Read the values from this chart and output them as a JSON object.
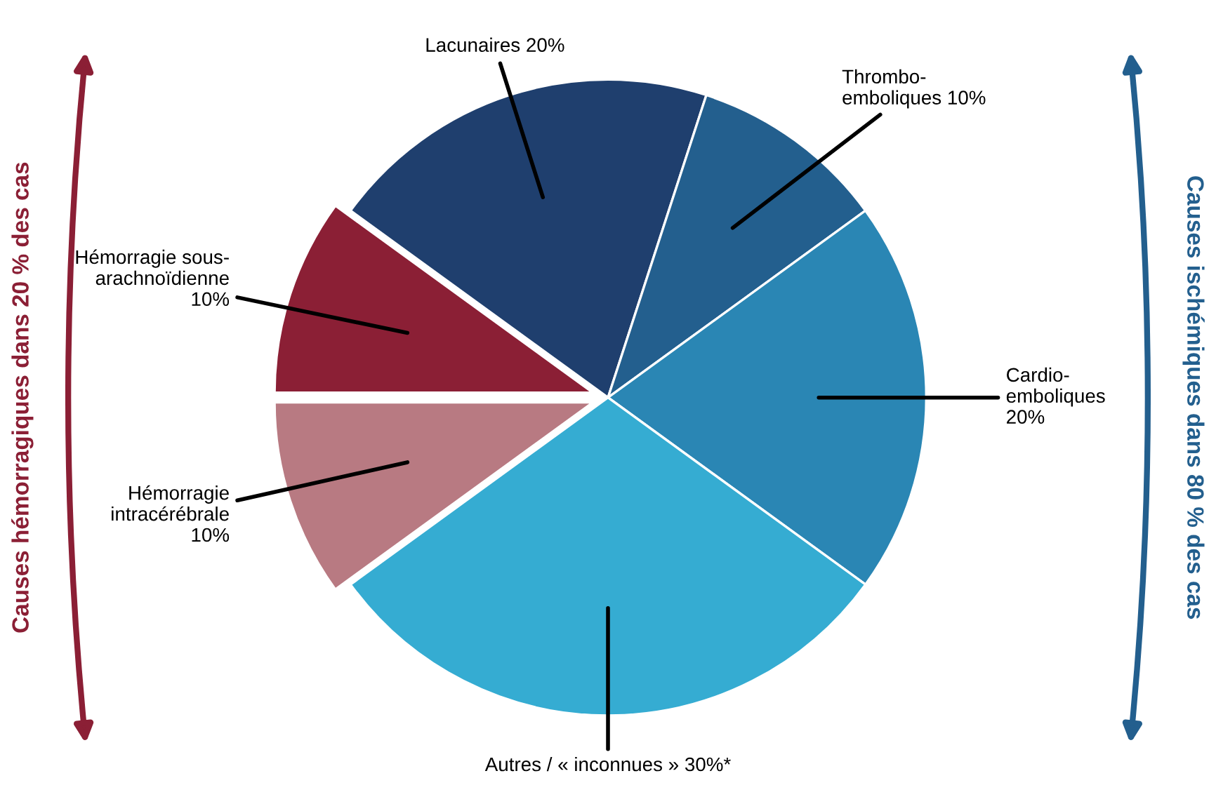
{
  "chart_data": {
    "type": "pie",
    "categories": [
      "Lacunaires 20%",
      "Thrombo-\nemboliques 10%",
      "Cardio-\nemboliques\n20%",
      "Autres / « inconnues » 30%*",
      "Hémorragie\nintracérébrale\n10%",
      "Hémorragie sous-\narachnoïdienne\n10%"
    ],
    "values": [
      20,
      10,
      20,
      30,
      10,
      10
    ],
    "colors": [
      "#1f3f6e",
      "#235f8e",
      "#2a86b4",
      "#35acd2",
      "#b87a82",
      "#8b1f35"
    ],
    "annotations": [
      "Causes hémorragiques dans 20 % des cas",
      "Causes ischémiques dans 80 % des cas"
    ]
  }
}
